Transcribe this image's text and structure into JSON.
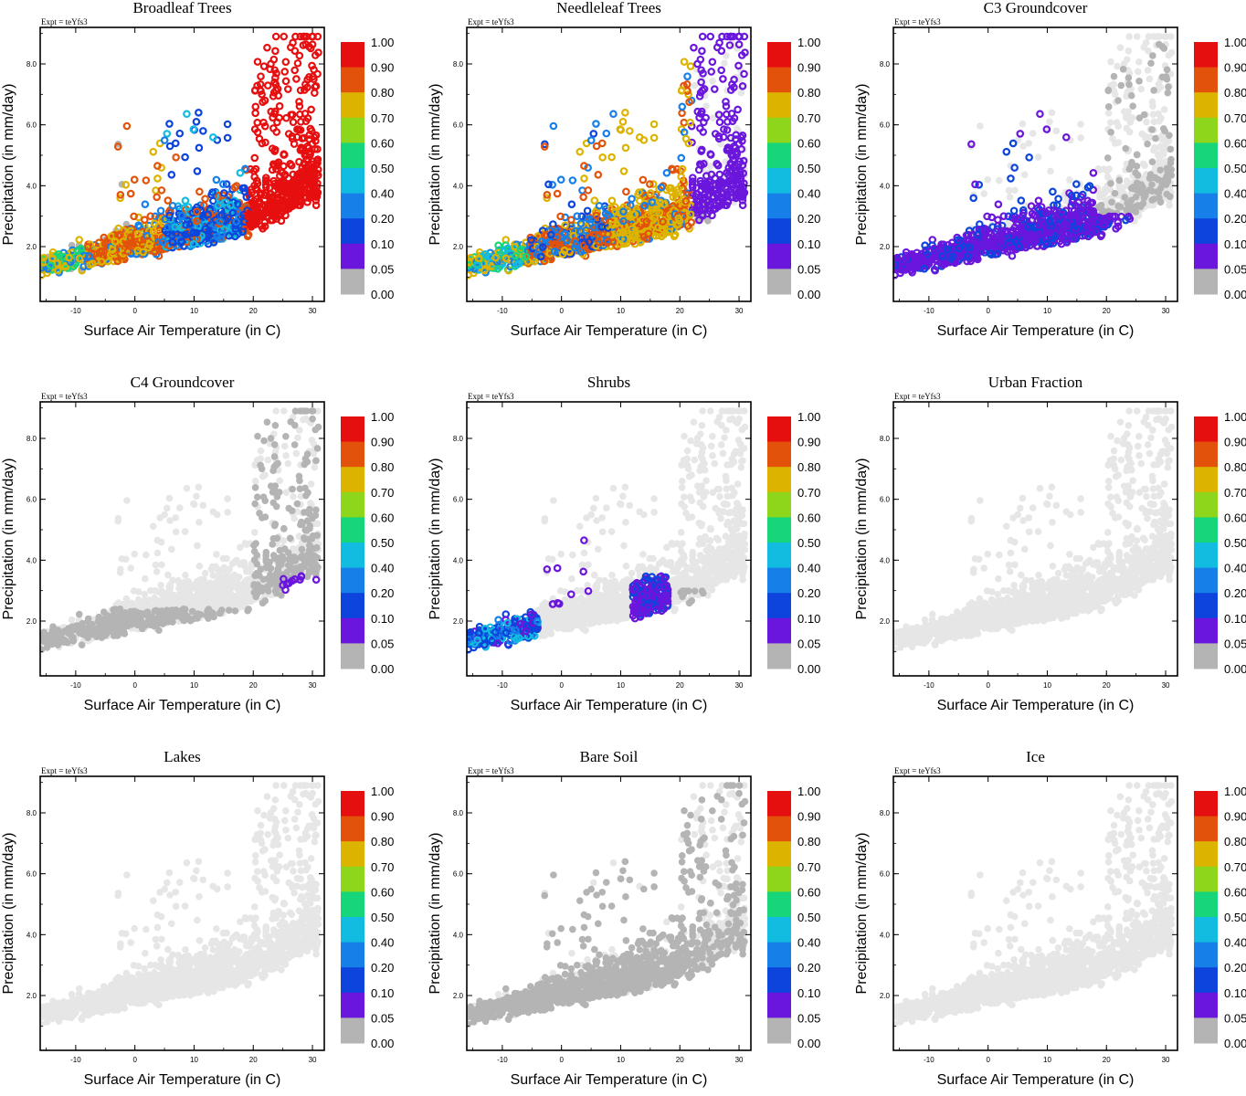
{
  "figure": {
    "experiment_label": "Expt = teYfs3"
  },
  "colorbar": {
    "labels": [
      "1.00",
      "0.90",
      "0.80",
      "0.70",
      "0.60",
      "0.50",
      "0.40",
      "0.20",
      "0.10",
      "0.05",
      "0.00"
    ],
    "colors": [
      "#e60f0f",
      "#e2520a",
      "#dcb400",
      "#8ed61c",
      "#17d67a",
      "#12bce0",
      "#1680e8",
      "#0c44dc",
      "#6b16dc",
      "#b4b4b4"
    ],
    "missing_color": "#e6e6e6",
    "zero_color": "#b4b4b4"
  },
  "chart_data": [
    {
      "type": "scatter",
      "title": "Broadleaf Trees",
      "xlabel": "Surface Air Temperature (in C)",
      "ylabel": "Precipitation (in mm/day)",
      "xlim": [
        -16,
        32
      ],
      "ylim": [
        0.2,
        9.2
      ],
      "xticks": [
        "-10",
        "0",
        "10",
        "20",
        "30"
      ],
      "yticks": [
        "2.0",
        "4.0",
        "6.0",
        "8.0"
      ],
      "pattern": "broadleaf"
    },
    {
      "type": "scatter",
      "title": "Needleleaf Trees",
      "xlabel": "Surface Air Temperature (in C)",
      "ylabel": "Precipitation (in mm/day)",
      "xlim": [
        -16,
        32
      ],
      "ylim": [
        0.2,
        9.2
      ],
      "xticks": [
        "-10",
        "0",
        "10",
        "20",
        "30"
      ],
      "yticks": [
        "2.0",
        "4.0",
        "6.0",
        "8.0"
      ],
      "pattern": "needleleaf"
    },
    {
      "type": "scatter",
      "title": "C3 Groundcover",
      "xlabel": "Surface Air Temperature (in C)",
      "ylabel": "Precipitation (in mm/day)",
      "xlim": [
        -16,
        32
      ],
      "ylim": [
        0.2,
        9.2
      ],
      "xticks": [
        "-10",
        "0",
        "10",
        "20",
        "30"
      ],
      "yticks": [
        "2.0",
        "4.0",
        "6.0",
        "8.0"
      ],
      "pattern": "c3"
    },
    {
      "type": "scatter",
      "title": "C4 Groundcover",
      "xlabel": "Surface Air Temperature (in C)",
      "ylabel": "Precipitation (in mm/day)",
      "xlim": [
        -16,
        32
      ],
      "ylim": [
        0.2,
        9.2
      ],
      "xticks": [
        "-10",
        "0",
        "10",
        "20",
        "30"
      ],
      "yticks": [
        "2.0",
        "4.0",
        "6.0",
        "8.0"
      ],
      "pattern": "c4"
    },
    {
      "type": "scatter",
      "title": "Shrubs",
      "xlabel": "Surface Air Temperature (in C)",
      "ylabel": "Precipitation (in mm/day)",
      "xlim": [
        -16,
        32
      ],
      "ylim": [
        0.2,
        9.2
      ],
      "xticks": [
        "-10",
        "0",
        "10",
        "20",
        "30"
      ],
      "yticks": [
        "2.0",
        "4.0",
        "6.0",
        "8.0"
      ],
      "pattern": "shrubs"
    },
    {
      "type": "scatter",
      "title": "Urban Fraction",
      "xlabel": "Surface Air Temperature (in C)",
      "ylabel": "Precipitation (in mm/day)",
      "xlim": [
        -16,
        32
      ],
      "ylim": [
        0.2,
        9.2
      ],
      "xticks": [
        "-10",
        "0",
        "10",
        "20",
        "30"
      ],
      "yticks": [
        "2.0",
        "4.0",
        "6.0",
        "8.0"
      ],
      "pattern": "none"
    },
    {
      "type": "scatter",
      "title": "Lakes",
      "xlabel": "Surface Air Temperature (in C)",
      "ylabel": "Precipitation (in mm/day)",
      "xlim": [
        -16,
        32
      ],
      "ylim": [
        0.2,
        9.2
      ],
      "xticks": [
        "-10",
        "0",
        "10",
        "20",
        "30"
      ],
      "yticks": [
        "2.0",
        "4.0",
        "6.0",
        "8.0"
      ],
      "pattern": "none"
    },
    {
      "type": "scatter",
      "title": "Bare Soil",
      "xlabel": "Surface Air Temperature (in C)",
      "ylabel": "Precipitation (in mm/day)",
      "xlim": [
        -16,
        32
      ],
      "ylim": [
        0.2,
        9.2
      ],
      "xticks": [
        "-10",
        "0",
        "10",
        "20",
        "30"
      ],
      "yticks": [
        "2.0",
        "4.0",
        "6.0",
        "8.0"
      ],
      "pattern": "baresoil"
    },
    {
      "type": "scatter",
      "title": "Ice",
      "xlabel": "Surface Air Temperature (in C)",
      "ylabel": "Precipitation (in mm/day)",
      "xlim": [
        -16,
        32
      ],
      "ylim": [
        0.2,
        9.2
      ],
      "xticks": [
        "-10",
        "0",
        "10",
        "20",
        "30"
      ],
      "yticks": [
        "2.0",
        "4.0",
        "6.0",
        "8.0"
      ],
      "pattern": "none"
    }
  ]
}
